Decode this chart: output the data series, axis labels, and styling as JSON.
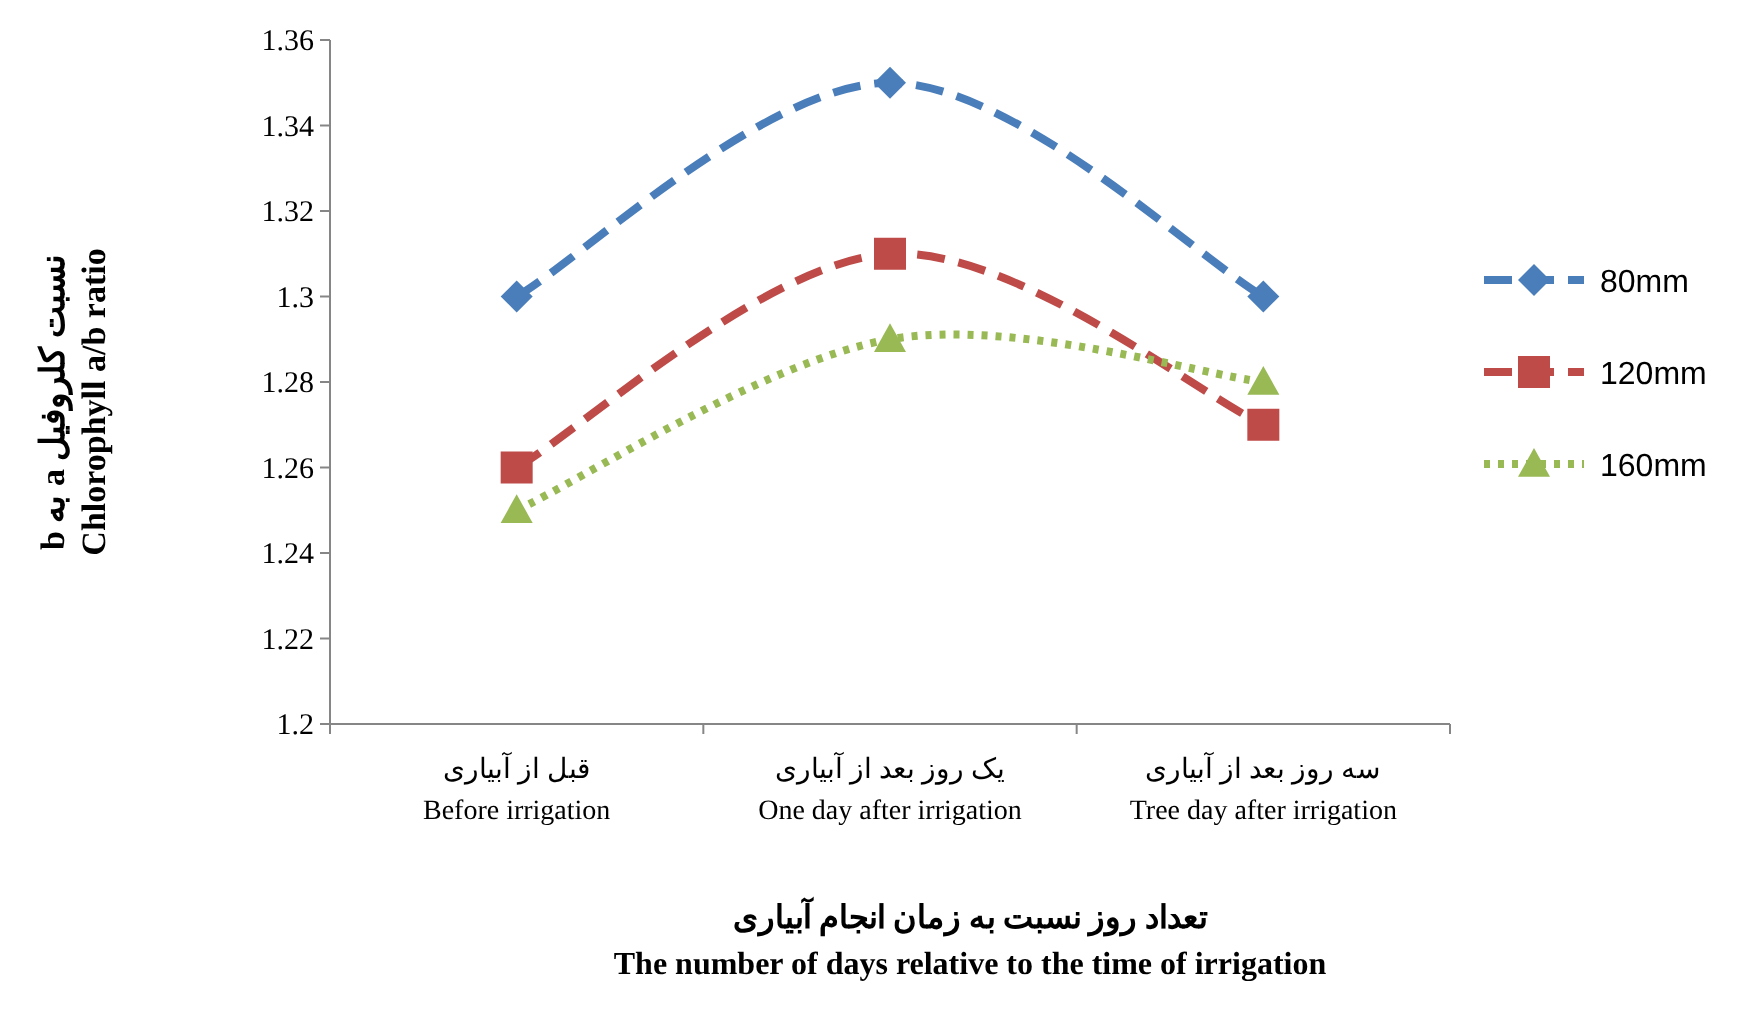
{
  "chart_data": {
    "type": "line",
    "ylabel": "نسبت کلروفیل a به b\nChlorophyll a/b ratio",
    "xlabel": "تعداد روز نسبت به زمان انجام آبیاری\nThe number  of days  relative to the time of irrigation",
    "categories": [
      "قبل از آبیاری\nBefore irrigation",
      "یک روز بعد از آبیاری\nOne day after irrigation",
      "سه روز بعد از آبیاری\nTree day after irrigation"
    ],
    "series": [
      {
        "name": "80mm",
        "color": "#4a7ebb",
        "marker": "diamond",
        "line_style": "dashed",
        "values": [
          1.3,
          1.35,
          1.3
        ]
      },
      {
        "name": "120mm",
        "color": "#be4b48",
        "marker": "square",
        "line_style": "dashed",
        "values": [
          1.26,
          1.31,
          1.27
        ]
      },
      {
        "name": "160mm",
        "color": "#98b954",
        "marker": "triangle",
        "line_style": "dotted",
        "values": [
          1.25,
          1.29,
          1.28
        ]
      }
    ],
    "ylim": [
      1.2,
      1.36
    ],
    "yticks": [
      1.2,
      1.22,
      1.24,
      1.26,
      1.28,
      1.3,
      1.32,
      1.34,
      1.36
    ],
    "grid": false,
    "legend": "right"
  }
}
